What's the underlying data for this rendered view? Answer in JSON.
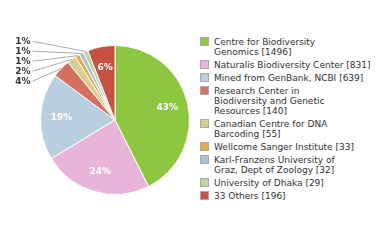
{
  "chart_data": {
    "type": "pie",
    "categories": [
      "Centre for Biodiversity\nGenomics [1496]",
      "Naturalis Biodiversity Center [831]",
      "Mined from GenBank, NCBI [639]",
      "Research Center in\nBiodiversity and Genetic\nResources [140]",
      "Canadian Centre for DNA\nBarcoding [55]",
      "Wellcome Sanger Institute [33]",
      "Karl-Franzens University of\nGraz, Dept of Zoology [32]",
      "University of Dhaka [29]",
      "33 Others [196]"
    ],
    "values": [
      43,
      24,
      19,
      4,
      2,
      1,
      1,
      1,
      6
    ],
    "value_labels": [
      "43%",
      "24%",
      "19%",
      "4%",
      "2%",
      "1%",
      "1%",
      "1%",
      "6%"
    ],
    "colors": [
      "#8dc63f",
      "#e8b4d8",
      "#b8cfe0",
      "#d47060",
      "#d8d090",
      "#e8a850",
      "#a8c4d8",
      "#b8d8a0",
      "#c85040"
    ],
    "data_labels": true,
    "legend": "right"
  }
}
